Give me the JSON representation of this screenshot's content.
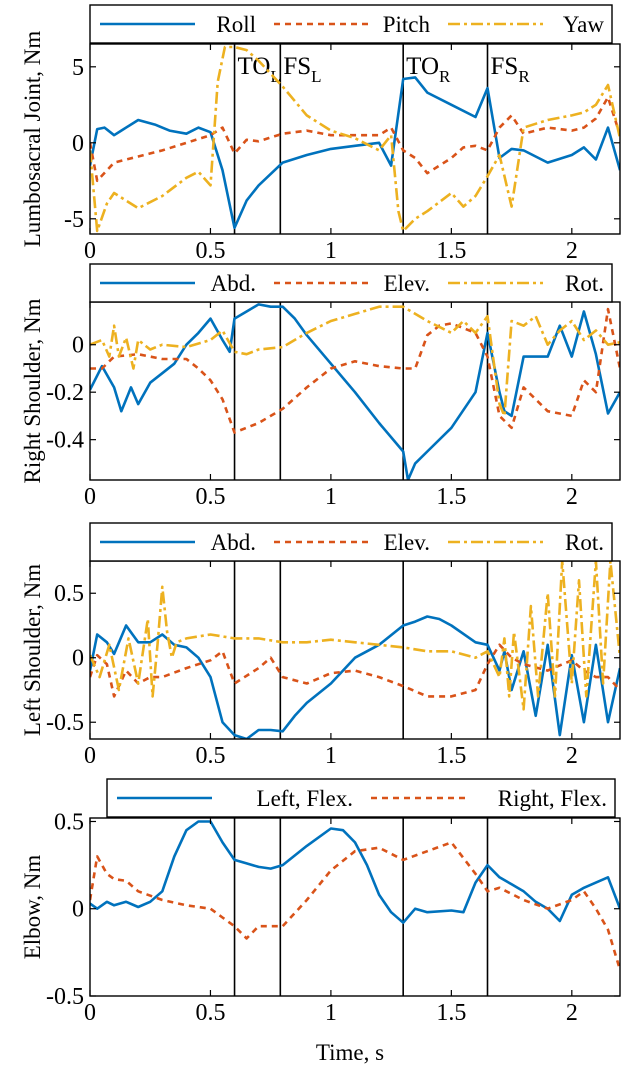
{
  "chart_data": [
    {
      "type": "line",
      "ylabel": "Lumbosacral Joint, Nm",
      "xlim": [
        0,
        2.2
      ],
      "ylim": [
        -6,
        6.5
      ],
      "xticks": [
        0,
        0.5,
        1,
        1.5,
        2
      ],
      "xtick_labels": [
        "0",
        "0.5",
        "1",
        "1.5",
        "2"
      ],
      "yticks": [
        -5,
        0,
        5
      ],
      "ytick_labels": [
        "-5",
        "0",
        "5"
      ],
      "events": [
        {
          "x": 0.6,
          "label": "TO",
          "sub": "L"
        },
        {
          "x": 0.79,
          "label": "FS",
          "sub": "L"
        },
        {
          "x": 1.3,
          "label": "TO",
          "sub": "R"
        },
        {
          "x": 1.65,
          "label": "FS",
          "sub": "R"
        }
      ],
      "series": [
        {
          "name": "Roll",
          "color": "#0072BD",
          "dash": "solid",
          "x": [
            0,
            0.03,
            0.06,
            0.1,
            0.13,
            0.2,
            0.27,
            0.33,
            0.4,
            0.45,
            0.5,
            0.55,
            0.6,
            0.65,
            0.7,
            0.8,
            0.9,
            1.0,
            1.1,
            1.2,
            1.25,
            1.3,
            1.35,
            1.4,
            1.5,
            1.6,
            1.65,
            1.7,
            1.75,
            1.8,
            1.9,
            2.0,
            2.05,
            2.1,
            2.15,
            2.2
          ],
          "y": [
            -1.5,
            0.9,
            1.0,
            0.5,
            0.8,
            1.5,
            1.2,
            0.8,
            0.6,
            1.0,
            0.7,
            -1.8,
            -5.6,
            -3.8,
            -2.8,
            -1.3,
            -0.8,
            -0.4,
            -0.2,
            0.0,
            -1.5,
            4.2,
            4.3,
            3.3,
            2.5,
            1.7,
            3.6,
            -1.0,
            -0.4,
            -0.5,
            -1.3,
            -0.8,
            -0.3,
            -1.1,
            1.0,
            -1.8
          ]
        },
        {
          "name": "Pitch",
          "color": "#D95319",
          "dash": "6,5",
          "x": [
            0,
            0.03,
            0.1,
            0.2,
            0.3,
            0.4,
            0.5,
            0.55,
            0.6,
            0.65,
            0.7,
            0.8,
            0.9,
            1.0,
            1.1,
            1.2,
            1.25,
            1.3,
            1.35,
            1.4,
            1.5,
            1.55,
            1.6,
            1.65,
            1.7,
            1.75,
            1.8,
            1.9,
            2.0,
            2.05,
            2.1,
            2.15,
            2.2
          ],
          "y": [
            0,
            -2.5,
            -1.3,
            -0.9,
            -0.5,
            0,
            0.5,
            1.0,
            -0.7,
            0.2,
            0.1,
            0.6,
            0.8,
            0.5,
            0.5,
            0.5,
            1.0,
            -0.5,
            -1.0,
            -2.0,
            -1.0,
            -0.3,
            -0.2,
            -0.5,
            1.0,
            1.8,
            0.6,
            1.0,
            0.8,
            1.0,
            1.6,
            3.0,
            0.5
          ]
        },
        {
          "name": "Yaw",
          "color": "#EDB120",
          "dash": "12,4,3,4",
          "x": [
            0,
            0.03,
            0.07,
            0.1,
            0.15,
            0.2,
            0.3,
            0.4,
            0.45,
            0.5,
            0.53,
            0.56,
            0.6,
            0.65,
            0.7,
            0.8,
            0.9,
            1.0,
            1.1,
            1.2,
            1.25,
            1.28,
            1.3,
            1.35,
            1.4,
            1.5,
            1.55,
            1.6,
            1.65,
            1.7,
            1.75,
            1.8,
            1.9,
            2.0,
            2.05,
            2.1,
            2.15,
            2.2
          ],
          "y": [
            -0.5,
            -5.8,
            -4.0,
            -3.3,
            -3.8,
            -4.3,
            -3.5,
            -2.3,
            -1.9,
            -2.8,
            4.0,
            6.3,
            6.3,
            6.1,
            5.4,
            3.7,
            1.8,
            0.8,
            0.3,
            -0.5,
            0.5,
            -4.5,
            -5.8,
            -5.0,
            -4.5,
            -3.3,
            -4.2,
            -3.5,
            -2.2,
            -0.8,
            -4.2,
            1.0,
            1.5,
            1.8,
            2.0,
            2.5,
            3.8,
            0.3
          ]
        }
      ]
    },
    {
      "type": "line",
      "ylabel": "Right Shoulder, Nm",
      "xlim": [
        0,
        2.2
      ],
      "ylim": [
        -0.57,
        0.18
      ],
      "xticks": [
        0,
        0.5,
        1,
        1.5,
        2
      ],
      "xtick_labels": [
        "0",
        "0.5",
        "1",
        "1.5",
        "2"
      ],
      "yticks": [
        -0.4,
        -0.2,
        0
      ],
      "ytick_labels": [
        "-0.4",
        "-0.2",
        "0"
      ],
      "events": [
        {
          "x": 0.6
        },
        {
          "x": 0.79
        },
        {
          "x": 1.3
        },
        {
          "x": 1.65
        }
      ],
      "series": [
        {
          "name": "Abd.",
          "color": "#0072BD",
          "dash": "solid",
          "x": [
            0,
            0.05,
            0.1,
            0.13,
            0.17,
            0.2,
            0.25,
            0.3,
            0.35,
            0.4,
            0.45,
            0.5,
            0.55,
            0.58,
            0.6,
            0.65,
            0.7,
            0.75,
            0.8,
            0.85,
            0.9,
            1.0,
            1.1,
            1.2,
            1.3,
            1.32,
            1.35,
            1.4,
            1.5,
            1.6,
            1.65,
            1.7,
            1.72,
            1.75,
            1.8,
            1.9,
            1.95,
            2.0,
            2.05,
            2.1,
            2.15,
            2.2
          ],
          "y": [
            -0.19,
            -0.09,
            -0.18,
            -0.28,
            -0.18,
            -0.25,
            -0.16,
            -0.12,
            -0.08,
            0.0,
            0.05,
            0.11,
            0.02,
            -0.03,
            0.11,
            0.14,
            0.17,
            0.16,
            0.16,
            0.11,
            0.04,
            -0.08,
            -0.2,
            -0.33,
            -0.45,
            -0.57,
            -0.5,
            -0.45,
            -0.35,
            -0.2,
            0.05,
            -0.2,
            -0.28,
            -0.3,
            -0.05,
            -0.05,
            0.08,
            -0.05,
            0.14,
            -0.04,
            -0.29,
            -0.2
          ]
        },
        {
          "name": "Elev.",
          "color": "#D95319",
          "dash": "6,5",
          "x": [
            0,
            0.05,
            0.1,
            0.2,
            0.3,
            0.4,
            0.45,
            0.5,
            0.55,
            0.6,
            0.7,
            0.8,
            0.9,
            1.0,
            1.1,
            1.2,
            1.3,
            1.35,
            1.4,
            1.45,
            1.5,
            1.6,
            1.65,
            1.7,
            1.75,
            1.8,
            1.9,
            2.0,
            2.05,
            2.1,
            2.15,
            2.2
          ],
          "y": [
            -0.1,
            -0.1,
            -0.05,
            -0.04,
            -0.06,
            -0.06,
            -0.1,
            -0.15,
            -0.23,
            -0.37,
            -0.33,
            -0.27,
            -0.18,
            -0.1,
            -0.07,
            -0.09,
            -0.1,
            -0.1,
            0.04,
            0.08,
            0.09,
            0.05,
            -0.05,
            -0.3,
            -0.35,
            -0.18,
            -0.28,
            -0.3,
            -0.15,
            -0.2,
            0.15,
            -0.1
          ]
        },
        {
          "name": "Rot.",
          "color": "#EDB120",
          "dash": "12,4,3,4",
          "x": [
            0,
            0.05,
            0.08,
            0.1,
            0.12,
            0.15,
            0.18,
            0.2,
            0.25,
            0.3,
            0.4,
            0.5,
            0.55,
            0.6,
            0.65,
            0.7,
            0.8,
            0.9,
            1.0,
            1.1,
            1.2,
            1.3,
            1.4,
            1.5,
            1.55,
            1.6,
            1.65,
            1.7,
            1.72,
            1.75,
            1.8,
            1.85,
            1.9,
            1.95,
            2.0,
            2.05,
            2.1,
            2.15,
            2.2
          ],
          "y": [
            0.0,
            0.02,
            -0.05,
            0.08,
            -0.05,
            0.03,
            -0.1,
            0.02,
            -0.02,
            0.0,
            -0.01,
            0.02,
            0.06,
            -0.03,
            -0.04,
            -0.02,
            -0.01,
            0.05,
            0.1,
            0.13,
            0.16,
            0.16,
            0.1,
            0.05,
            0.1,
            0.05,
            0.12,
            -0.25,
            -0.3,
            0.1,
            0.08,
            0.12,
            0.0,
            0.06,
            0.1,
            0.02,
            0.06,
            0.0,
            0.01
          ]
        }
      ]
    },
    {
      "type": "line",
      "ylabel": "Left Shoulder, Nm",
      "xlim": [
        0,
        2.2
      ],
      "ylim": [
        -0.63,
        0.75
      ],
      "xticks": [
        0,
        0.5,
        1,
        1.5,
        2
      ],
      "xtick_labels": [
        "0",
        "0.5",
        "1",
        "1.5",
        "2"
      ],
      "yticks": [
        -0.5,
        0,
        0.5
      ],
      "ytick_labels": [
        "-0.5",
        "0",
        "0.5"
      ],
      "events": [
        {
          "x": 0.6
        },
        {
          "x": 0.79
        },
        {
          "x": 1.3
        },
        {
          "x": 1.65
        }
      ],
      "series": [
        {
          "name": "Abd.",
          "color": "#0072BD",
          "dash": "solid",
          "x": [
            0,
            0.03,
            0.07,
            0.1,
            0.15,
            0.2,
            0.25,
            0.3,
            0.35,
            0.4,
            0.45,
            0.5,
            0.55,
            0.6,
            0.65,
            0.7,
            0.75,
            0.8,
            0.85,
            0.9,
            1.0,
            1.1,
            1.2,
            1.3,
            1.35,
            1.4,
            1.45,
            1.5,
            1.6,
            1.65,
            1.7,
            1.72,
            1.75,
            1.8,
            1.85,
            1.9,
            1.95,
            2.0,
            2.05,
            2.1,
            2.15,
            2.2
          ],
          "y": [
            -0.1,
            0.18,
            0.12,
            0.03,
            0.25,
            0.12,
            0.12,
            0.18,
            0.1,
            0.08,
            0.0,
            -0.15,
            -0.5,
            -0.6,
            -0.63,
            -0.56,
            -0.56,
            -0.57,
            -0.45,
            -0.35,
            -0.2,
            0.0,
            0.1,
            0.25,
            0.28,
            0.32,
            0.3,
            0.25,
            0.12,
            0.1,
            -0.1,
            0.05,
            -0.25,
            0.05,
            -0.45,
            0.1,
            -0.6,
            0.02,
            -0.5,
            0.1,
            -0.5,
            -0.08
          ]
        },
        {
          "name": "Elev.",
          "color": "#D95319",
          "dash": "6,5",
          "x": [
            0,
            0.03,
            0.07,
            0.1,
            0.15,
            0.2,
            0.25,
            0.3,
            0.4,
            0.5,
            0.55,
            0.6,
            0.7,
            0.75,
            0.8,
            0.9,
            1.0,
            1.1,
            1.2,
            1.3,
            1.4,
            1.5,
            1.6,
            1.65,
            1.7,
            1.75,
            1.8,
            1.9,
            2.0,
            2.05,
            2.1,
            2.15,
            2.2
          ],
          "y": [
            -0.15,
            0.02,
            -0.05,
            -0.3,
            -0.1,
            -0.2,
            -0.15,
            -0.15,
            -0.08,
            -0.02,
            0.05,
            -0.2,
            -0.08,
            0.0,
            -0.15,
            -0.2,
            -0.12,
            -0.1,
            -0.15,
            -0.22,
            -0.3,
            -0.3,
            -0.25,
            -0.05,
            0.1,
            0.0,
            -0.05,
            -0.1,
            -0.02,
            -0.1,
            -0.15,
            -0.15,
            -0.25
          ]
        },
        {
          "name": "Rot.",
          "color": "#EDB120",
          "dash": "12,4,3,4",
          "x": [
            0,
            0.04,
            0.08,
            0.12,
            0.16,
            0.2,
            0.24,
            0.26,
            0.28,
            0.3,
            0.32,
            0.34,
            0.36,
            0.4,
            0.5,
            0.6,
            0.7,
            0.8,
            0.9,
            1.0,
            1.1,
            1.2,
            1.3,
            1.4,
            1.5,
            1.6,
            1.65,
            1.7,
            1.72,
            1.74,
            1.76,
            1.8,
            1.83,
            1.86,
            1.9,
            1.93,
            1.96,
            2.0,
            2.03,
            2.06,
            2.1,
            2.13,
            2.16,
            2.2
          ],
          "y": [
            0.02,
            -0.15,
            0.1,
            -0.25,
            0.15,
            -0.2,
            0.3,
            -0.3,
            0.1,
            0.55,
            0.2,
            0.0,
            0.12,
            0.15,
            0.18,
            0.15,
            0.15,
            0.12,
            0.12,
            0.14,
            0.12,
            0.1,
            0.08,
            0.05,
            0.05,
            0.0,
            0.05,
            -0.15,
            0.15,
            -0.3,
            0.2,
            -0.4,
            0.4,
            -0.3,
            0.5,
            -0.3,
            0.75,
            -0.2,
            0.6,
            -0.3,
            0.75,
            -0.2,
            0.75,
            0.0
          ]
        }
      ]
    },
    {
      "type": "line",
      "ylabel": "Elbow, Nm",
      "xlabel": "Time, s",
      "xlim": [
        0,
        2.2
      ],
      "ylim": [
        -0.5,
        0.52
      ],
      "xticks": [
        0,
        0.5,
        1,
        1.5,
        2
      ],
      "xtick_labels": [
        "0",
        "0.5",
        "1",
        "1.5",
        "2"
      ],
      "yticks": [
        -0.5,
        0,
        0.5
      ],
      "ytick_labels": [
        "-0.5",
        "0",
        "0.5"
      ],
      "events": [
        {
          "x": 0.6
        },
        {
          "x": 0.79
        },
        {
          "x": 1.3
        },
        {
          "x": 1.65
        }
      ],
      "series": [
        {
          "name": "Left, Flex.",
          "color": "#0072BD",
          "dash": "solid",
          "x": [
            0,
            0.03,
            0.07,
            0.1,
            0.15,
            0.2,
            0.25,
            0.3,
            0.35,
            0.4,
            0.45,
            0.5,
            0.55,
            0.6,
            0.65,
            0.7,
            0.75,
            0.8,
            0.9,
            1.0,
            1.05,
            1.1,
            1.15,
            1.2,
            1.25,
            1.3,
            1.35,
            1.4,
            1.5,
            1.55,
            1.6,
            1.65,
            1.7,
            1.75,
            1.8,
            1.85,
            1.9,
            1.95,
            2.0,
            2.05,
            2.1,
            2.15,
            2.2
          ],
          "y": [
            0.03,
            0.0,
            0.04,
            0.02,
            0.04,
            0.01,
            0.04,
            0.1,
            0.3,
            0.45,
            0.5,
            0.5,
            0.38,
            0.28,
            0.26,
            0.24,
            0.23,
            0.25,
            0.36,
            0.46,
            0.45,
            0.38,
            0.25,
            0.08,
            -0.02,
            -0.08,
            0.0,
            -0.02,
            -0.01,
            -0.02,
            0.15,
            0.25,
            0.18,
            0.14,
            0.1,
            0.04,
            0.0,
            -0.07,
            0.08,
            0.12,
            0.15,
            0.18,
            0.0
          ]
        },
        {
          "name": "Right, Flex.",
          "color": "#D95319",
          "dash": "6,5",
          "x": [
            0,
            0.03,
            0.07,
            0.1,
            0.15,
            0.2,
            0.3,
            0.4,
            0.5,
            0.55,
            0.6,
            0.65,
            0.7,
            0.8,
            0.9,
            1.0,
            1.1,
            1.2,
            1.3,
            1.4,
            1.5,
            1.6,
            1.65,
            1.7,
            1.8,
            1.9,
            2.0,
            2.05,
            2.1,
            2.15,
            2.2
          ],
          "y": [
            0.05,
            0.3,
            0.2,
            0.17,
            0.16,
            0.1,
            0.05,
            0.02,
            0.0,
            -0.05,
            -0.1,
            -0.17,
            -0.1,
            -0.1,
            0.05,
            0.22,
            0.33,
            0.35,
            0.28,
            0.33,
            0.38,
            0.2,
            0.1,
            0.12,
            0.05,
            0.0,
            0.05,
            0.1,
            0.0,
            -0.12,
            -0.35
          ]
        }
      ]
    }
  ]
}
